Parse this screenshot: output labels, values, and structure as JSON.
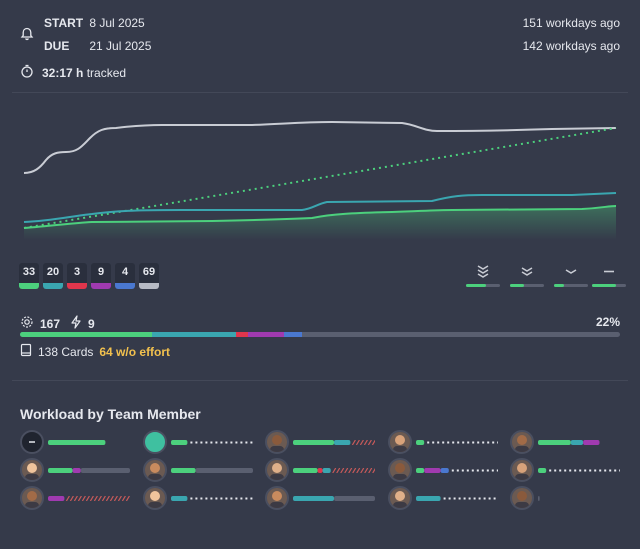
{
  "header": {
    "start_label": "START",
    "start_date": "8 Jul 2025",
    "start_ago": "151 workdays ago",
    "due_label": "DUE",
    "due_date": "21 Jul 2025",
    "due_ago": "142 workdays ago",
    "tracked_value": "32:17 h",
    "tracked_label": "tracked"
  },
  "status_counts": [
    {
      "value": "33",
      "color": "#4cd07d"
    },
    {
      "value": "20",
      "color": "#3aa6b0"
    },
    {
      "value": "3",
      "color": "#e0364c"
    },
    {
      "value": "9",
      "color": "#a03ab0"
    },
    {
      "value": "4",
      "color": "#4a78d0"
    },
    {
      "value": "69",
      "color": "#b7bac4"
    }
  ],
  "priority_icons": [
    "priority-highest-icon",
    "priority-high-icon",
    "priority-medium-icon",
    "priority-low-icon"
  ],
  "priority_fill": [
    0.6,
    0.4,
    0.3,
    0.7
  ],
  "stats": {
    "effort": "167",
    "bolt": "9",
    "percent": "22%",
    "cards": "138 Cards",
    "no_effort": "64 w/o effort"
  },
  "progress": [
    {
      "fraction": 0.22,
      "color": "#4cd07d"
    },
    {
      "fraction": 0.14,
      "color": "#3aa6b0"
    },
    {
      "fraction": 0.02,
      "color": "#e0364c"
    },
    {
      "fraction": 0.06,
      "color": "#a03ab0"
    },
    {
      "fraction": 0.03,
      "color": "#4a78d0"
    }
  ],
  "workload": {
    "title": "Workload by Team Member"
  }
}
